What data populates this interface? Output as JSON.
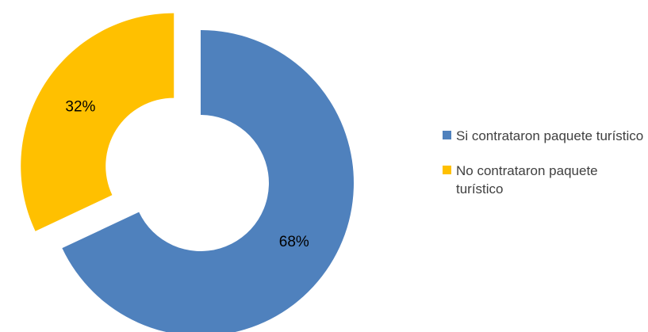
{
  "chart_data": {
    "type": "pie",
    "style": "doughnut",
    "title": "",
    "slices": [
      {
        "label": "Si contrataron paquete turístico",
        "value": 68,
        "display": "68%",
        "color": "#4F81BD",
        "exploded": false
      },
      {
        "label": "No contrataron paquete turístico",
        "value": 32,
        "display": "32%",
        "color": "#FFC000",
        "exploded": true
      }
    ],
    "legend_position": "right"
  }
}
